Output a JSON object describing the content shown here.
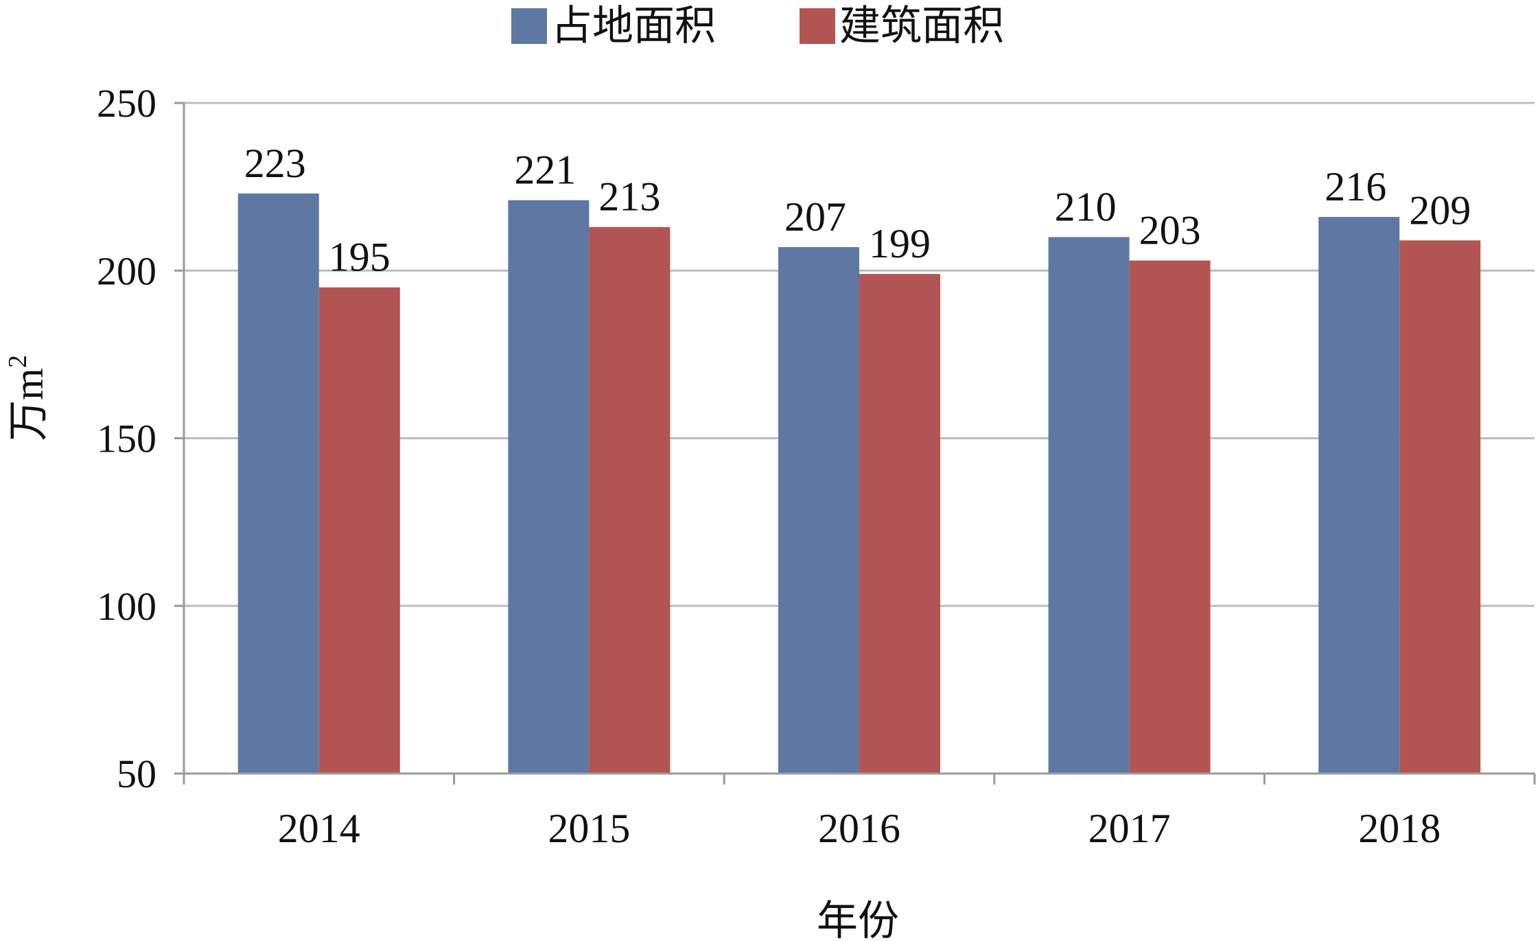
{
  "chart_data": {
    "type": "bar",
    "categories": [
      "2014",
      "2015",
      "2016",
      "2017",
      "2018"
    ],
    "series": [
      {
        "name": "占地面积",
        "color": "#5f77a3",
        "values": [
          223,
          221,
          207,
          210,
          216
        ]
      },
      {
        "name": "建筑面积",
        "color": "#b25552",
        "values": [
          195,
          213,
          199,
          203,
          209
        ]
      }
    ],
    "xlabel": "年份",
    "ylabel": "万m",
    "ylabel_superscript": "2",
    "ylim": [
      50,
      250
    ],
    "yticks": [
      "50",
      "100",
      "150",
      "200",
      "250"
    ],
    "grid": true,
    "legend_position": "top"
  }
}
